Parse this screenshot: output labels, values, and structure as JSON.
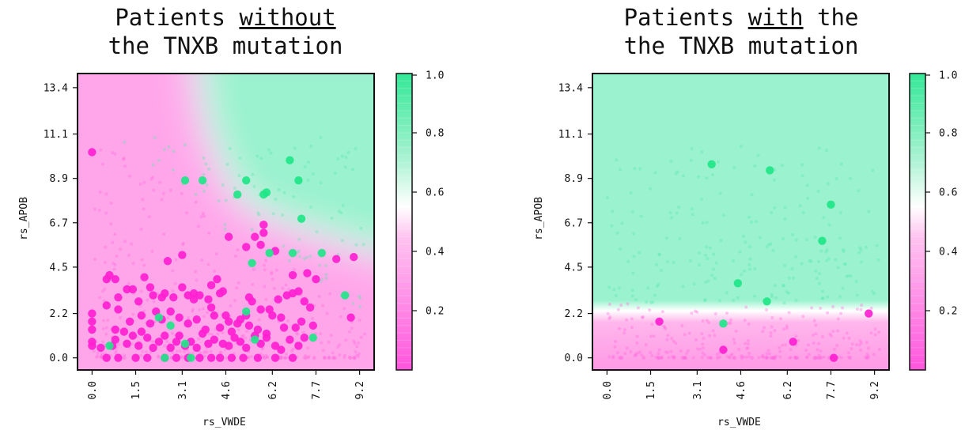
{
  "colors": {
    "pink": "#ff55dd",
    "green": "#33e898",
    "white": "#ffffff",
    "axis": "#111111"
  },
  "chart_data": [
    {
      "type": "scatter",
      "title_before": "Patients ",
      "title_emph": "without",
      "title_after": "",
      "title_line2": "the TNXB mutation",
      "xlabel": "rs_VWDE",
      "ylabel": "rs_APOB",
      "x_ticks": [
        "0.0",
        "1.5",
        "3.1",
        "4.6",
        "6.2",
        "7.7",
        "9.2"
      ],
      "y_ticks": [
        "0.0",
        "2.2",
        "4.5",
        "6.7",
        "8.9",
        "11.1",
        "13.4"
      ],
      "xlim": [
        -0.5,
        9.7
      ],
      "ylim": [
        -0.6,
        14.1
      ],
      "colorbar": {
        "ticks": [
          "0.2",
          "0.4",
          "0.6",
          "0.8",
          "1.0"
        ],
        "range": [
          0,
          1
        ]
      },
      "background": "probability surface; green (≈1) in upper-right above a curved boundary, pink (≈0) elsewhere",
      "series": [
        {
          "label": "pink",
          "points": [
            [
              0,
              10.2
            ],
            [
              0.5,
              3.9
            ],
            [
              0.6,
              4.1
            ],
            [
              0.8,
              3.9
            ],
            [
              0.5,
              2.6
            ],
            [
              0.9,
              3.0
            ],
            [
              1.2,
              3.4
            ],
            [
              1.4,
              3.4
            ],
            [
              1.8,
              4.0
            ],
            [
              2.0,
              3.5
            ],
            [
              2.1,
              3.1
            ],
            [
              2.4,
              3.0
            ],
            [
              2.5,
              3.2
            ],
            [
              2.6,
              4.8
            ],
            [
              2.8,
              3.0
            ],
            [
              3.1,
              3.5
            ],
            [
              3.3,
              3.1
            ],
            [
              3.5,
              3.2
            ],
            [
              3.5,
              2.9
            ],
            [
              3.7,
              3.1
            ],
            [
              4.0,
              2.9
            ],
            [
              4.1,
              3.6
            ],
            [
              4.3,
              3.9
            ],
            [
              4.4,
              3.2
            ],
            [
              4.5,
              3.3
            ],
            [
              4.1,
              2.5
            ],
            [
              4.2,
              2.1
            ],
            [
              4.6,
              2.1
            ],
            [
              4.7,
              1.8
            ],
            [
              5.1,
              1.9
            ],
            [
              5.3,
              2.1
            ],
            [
              5.4,
              3.0
            ],
            [
              5.5,
              2.8
            ],
            [
              5.8,
              2.4
            ],
            [
              6.1,
              2.4
            ],
            [
              6.2,
              2.1
            ],
            [
              6.5,
              2.0
            ],
            [
              6.4,
              2.9
            ],
            [
              6.7,
              3.1
            ],
            [
              6.9,
              3.2
            ],
            [
              7.1,
              3.3
            ],
            [
              7.3,
              2.8
            ],
            [
              7.5,
              2.5
            ],
            [
              7.7,
              3.9
            ],
            [
              7.4,
              4.2
            ],
            [
              8.4,
              4.9
            ],
            [
              9.0,
              5.0
            ],
            [
              8.9,
              2.0
            ],
            [
              0,
              2.2
            ],
            [
              0,
              1.8
            ],
            [
              0,
              1.4
            ],
            [
              0,
              0.8
            ],
            [
              0,
              0.6
            ],
            [
              0.3,
              0.5
            ],
            [
              0.7,
              0.6
            ],
            [
              0.8,
              0.9
            ],
            [
              1.1,
              1.3
            ],
            [
              1.2,
              0.7
            ],
            [
              1.4,
              1.1
            ],
            [
              1.6,
              0.6
            ],
            [
              1.7,
              1.3
            ],
            [
              1.9,
              1.0
            ],
            [
              2.1,
              0.5
            ],
            [
              2.3,
              0.8
            ],
            [
              2.5,
              1.1
            ],
            [
              2.7,
              0.5
            ],
            [
              2.9,
              0.8
            ],
            [
              3.0,
              1.1
            ],
            [
              3.2,
              0.6
            ],
            [
              3.4,
              0.8
            ],
            [
              3.6,
              0.5
            ],
            [
              3.8,
              1.2
            ],
            [
              4.0,
              0.7
            ],
            [
              4.2,
              0.9
            ],
            [
              4.5,
              0.7
            ],
            [
              4.7,
              0.6
            ],
            [
              4.9,
              1.0
            ],
            [
              5.1,
              0.8
            ],
            [
              5.3,
              0.5
            ],
            [
              5.6,
              1.1
            ],
            [
              5.8,
              0.7
            ],
            [
              6.0,
              1.0
            ],
            [
              6.3,
              0.6
            ],
            [
              6.5,
              0.4
            ],
            [
              6.8,
              0.9
            ],
            [
              7.1,
              0.6
            ],
            [
              7.3,
              1.0
            ],
            [
              0.5,
              0
            ],
            [
              0.9,
              0
            ],
            [
              1.5,
              0
            ],
            [
              1.9,
              0
            ],
            [
              2.5,
              0
            ],
            [
              2.9,
              0
            ],
            [
              3.3,
              0
            ],
            [
              3.7,
              0
            ],
            [
              4.1,
              0
            ],
            [
              4.4,
              0
            ],
            [
              4.8,
              0
            ],
            [
              5.2,
              0
            ],
            [
              5.7,
              0
            ],
            [
              6.3,
              0
            ],
            [
              6.9,
              0
            ],
            [
              5.3,
              5.5
            ],
            [
              5.6,
              6.0
            ],
            [
              5.9,
              6.6
            ],
            [
              5.9,
              6.2
            ],
            [
              5.8,
              5.6
            ],
            [
              6.3,
              5.3
            ],
            [
              6.9,
              4.1
            ],
            [
              4.7,
              6.0
            ],
            [
              3.1,
              5.1
            ],
            [
              1.7,
              2.1
            ],
            [
              2.2,
              2.3
            ],
            [
              2.7,
              2.3
            ],
            [
              3.0,
              2.0
            ],
            [
              3.3,
              1.7
            ],
            [
              3.6,
              1.9
            ],
            [
              3.9,
              1.4
            ],
            [
              4.4,
              1.5
            ],
            [
              4.8,
              1.3
            ],
            [
              5.0,
              1.7
            ],
            [
              5.4,
              1.6
            ],
            [
              5.7,
              1.4
            ],
            [
              6.0,
              1.2
            ],
            [
              6.6,
              1.5
            ],
            [
              7.0,
              1.5
            ],
            [
              7.2,
              1.8
            ],
            [
              7.6,
              1.6
            ],
            [
              0.9,
              2.4
            ],
            [
              1.6,
              2.8
            ],
            [
              1.3,
              1.8
            ],
            [
              0.8,
              1.4
            ],
            [
              2.0,
              1.7
            ],
            [
              2.4,
              1.9
            ]
          ]
        },
        {
          "label": "green",
          "points": [
            [
              3.2,
              8.8
            ],
            [
              3.8,
              8.8
            ],
            [
              5.3,
              8.8
            ],
            [
              5.0,
              8.1
            ],
            [
              5.9,
              8.1
            ],
            [
              6.0,
              8.2
            ],
            [
              6.8,
              9.8
            ],
            [
              7.1,
              8.8
            ],
            [
              7.2,
              6.9
            ],
            [
              6.1,
              5.2
            ],
            [
              6.9,
              5.2
            ],
            [
              7.9,
              5.2
            ],
            [
              5.5,
              4.7
            ],
            [
              8.7,
              3.1
            ],
            [
              7.6,
              1.0
            ],
            [
              5.3,
              2.3
            ],
            [
              5.6,
              0.9
            ],
            [
              2.3,
              2.0
            ],
            [
              2.7,
              1.6
            ],
            [
              0.6,
              0.6
            ],
            [
              2.5,
              0.0
            ],
            [
              3.4,
              0.0
            ],
            [
              3.2,
              0.7
            ]
          ]
        }
      ]
    },
    {
      "type": "scatter",
      "title_before": "Patients ",
      "title_emph": "with",
      "title_after": " the",
      "title_line2": "the TNXB mutation",
      "xlabel": "rs_VWDE",
      "ylabel": "rs_APOB",
      "x_ticks": [
        "0.0",
        "1.5",
        "3.1",
        "4.6",
        "6.2",
        "7.7",
        "9.2"
      ],
      "y_ticks": [
        "0.0",
        "2.2",
        "4.5",
        "6.7",
        "8.9",
        "11.1",
        "13.4"
      ],
      "xlim": [
        -0.5,
        9.7
      ],
      "ylim": [
        -0.6,
        14.1
      ],
      "colorbar": {
        "ticks": [
          "0.2",
          "0.4",
          "0.6",
          "0.8",
          "1.0"
        ],
        "range": [
          0,
          1
        ]
      },
      "background": "probability surface; green (≈1) above y≈2.6, pink (≈0) below",
      "series": [
        {
          "label": "pink",
          "points": [
            [
              1.8,
              1.8
            ],
            [
              4.0,
              0.4
            ],
            [
              6.4,
              0.8
            ],
            [
              7.8,
              0.0
            ],
            [
              9.0,
              2.2
            ]
          ]
        },
        {
          "label": "green",
          "points": [
            [
              3.6,
              9.6
            ],
            [
              5.6,
              9.3
            ],
            [
              7.7,
              7.6
            ],
            [
              7.4,
              5.8
            ],
            [
              4.5,
              3.7
            ],
            [
              5.5,
              2.8
            ],
            [
              4.0,
              1.7
            ]
          ]
        }
      ]
    }
  ]
}
